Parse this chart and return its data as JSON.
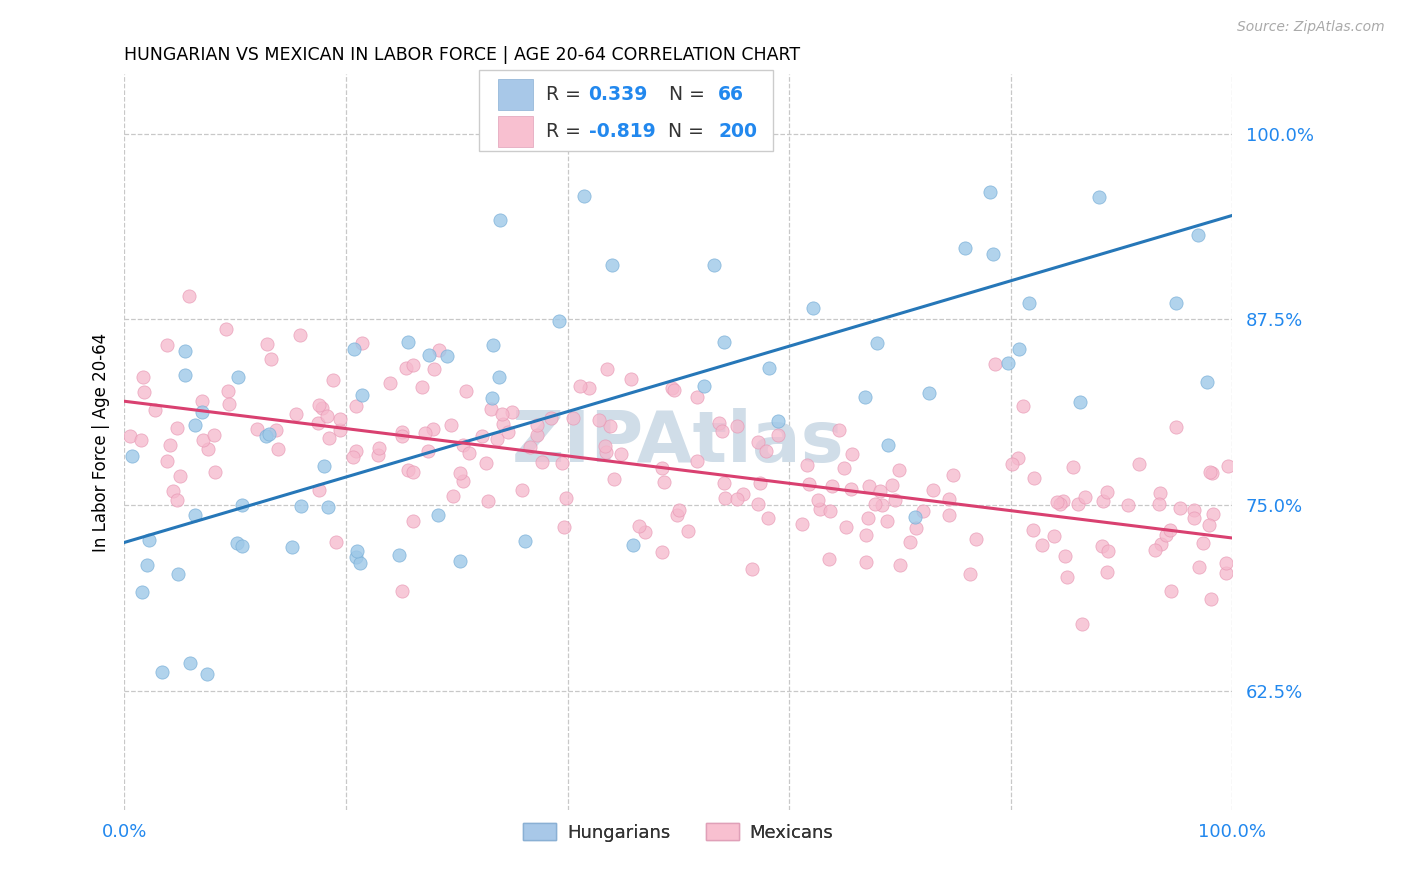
{
  "title": "HUNGARIAN VS MEXICAN IN LABOR FORCE | AGE 20-64 CORRELATION CHART",
  "source": "Source: ZipAtlas.com",
  "ylabel": "In Labor Force | Age 20-64",
  "ytick_labels": [
    "62.5%",
    "75.0%",
    "87.5%",
    "100.0%"
  ],
  "ytick_values": [
    0.625,
    0.75,
    0.875,
    1.0
  ],
  "xlim": [
    0.0,
    1.0
  ],
  "ylim": [
    0.545,
    1.04
  ],
  "blue_scatter_color": "#9ec8e8",
  "blue_edge_color": "#7ab0d8",
  "pink_scatter_color": "#f5b8cc",
  "pink_edge_color": "#e898b4",
  "blue_line_color": "#2677b8",
  "pink_line_color": "#d94070",
  "watermark": "ZIPAtlas",
  "watermark_color": "#d0dde8",
  "R_hungarian": 0.339,
  "N_hungarian": 66,
  "R_mexican": -0.819,
  "N_mexican": 200,
  "seed": 42,
  "hung_line_x0": 0.0,
  "hung_line_y0": 0.725,
  "hung_line_x1": 1.0,
  "hung_line_y1": 0.945,
  "mex_line_x0": 0.0,
  "mex_line_y0": 0.82,
  "mex_line_x1": 1.0,
  "mex_line_y1": 0.728
}
